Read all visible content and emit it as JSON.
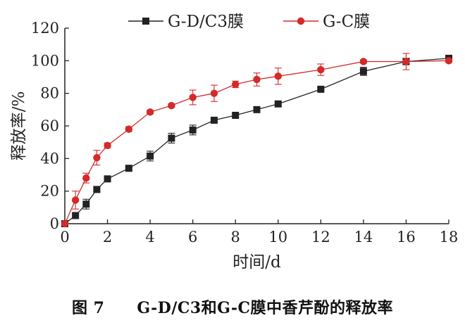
{
  "chart_data": {
    "type": "line",
    "xlabel": "时间/d",
    "ylabel": "释放率/%",
    "xlim": [
      0,
      18
    ],
    "ylim": [
      0,
      120
    ],
    "xticks": [
      0,
      2,
      4,
      6,
      8,
      10,
      12,
      14,
      16,
      18
    ],
    "yticks": [
      0,
      20,
      40,
      60,
      80,
      100,
      120
    ],
    "grid": false,
    "legend_position": "top",
    "series": [
      {
        "name": "G-D/C3膜",
        "color": "#222222",
        "marker": "square",
        "x": [
          0,
          0.5,
          1,
          1.5,
          2,
          3,
          4,
          5,
          6,
          7,
          8,
          9,
          10,
          12,
          14,
          16,
          18
        ],
        "y": [
          0,
          5,
          12,
          21,
          27.5,
          34,
          41.5,
          52.5,
          57.5,
          63.5,
          66.5,
          70,
          73.5,
          82.5,
          93.5,
          99.5,
          101.5
        ],
        "err": [
          0.5,
          1.5,
          3,
          1.5,
          1,
          1,
          3,
          3,
          3,
          1.5,
          1,
          1.5,
          1.5,
          1,
          2.5,
          2,
          1
        ]
      },
      {
        "name": "G-C膜",
        "color": "#d42a2a",
        "marker": "circle",
        "x": [
          0,
          0.5,
          1,
          1.5,
          2,
          3,
          4,
          5,
          6,
          7,
          8,
          9,
          10,
          12,
          14,
          16,
          18
        ],
        "y": [
          0,
          14.5,
          28,
          40.5,
          48,
          58,
          68.5,
          72.5,
          77.5,
          80,
          85.5,
          88.5,
          90.5,
          94.5,
          99.5,
          99.5,
          100
        ],
        "err": [
          0.5,
          5.5,
          3,
          4.5,
          1.5,
          1.5,
          1,
          1,
          4.5,
          5,
          2,
          4,
          5,
          3.5,
          1,
          5,
          1
        ]
      }
    ]
  },
  "caption": {
    "number": "图 7",
    "text": "G-D/C3和G-C膜中香芹酚的释放率"
  }
}
